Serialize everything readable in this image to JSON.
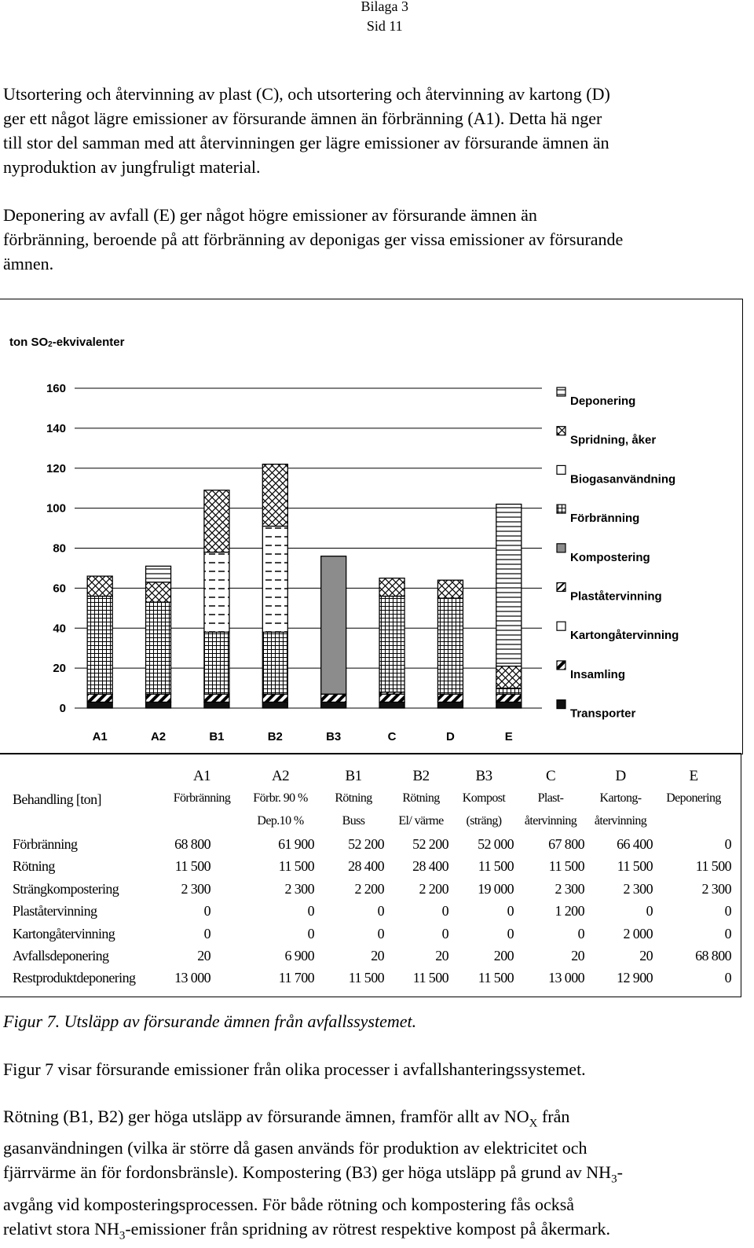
{
  "header": {
    "line1": "Bilaga 3",
    "line2": "Sid 11"
  },
  "paragraphs": {
    "p1": [
      "Utsortering och återvinning av plast (C), och utsortering och återvinning av kartong (D)",
      "ger ett något lägre emissioner av försurande ämnen än förbränning (A1). Detta hä nger",
      "till stor del samman med att återvinningen ger lägre emissioner av försurande ämnen än",
      "nyproduktion av jungfruligt material."
    ],
    "p2": [
      "Deponering av avfall (E) ger något högre emissioner av försurande ämnen än",
      "förbränning, beroende på att förbränning av deponigas ger vissa emissioner av försurande",
      "ämnen."
    ],
    "p3": "Figur 7 visar försurande emissioner från olika processer i avfallshanteringssystemet.",
    "p4_line1_a": "Rötning (B1, B2) ger höga utsläpp av försurande ämnen, framför allt av NO",
    "p4_line1_sub": "X",
    "p4_line1_b": " från",
    "p4_line2": "gasanvändningen (vilka är större då gasen används för produktion av elektricitet och",
    "p4_line3_a": "fjärrvärme än för fordonsbränsle). Kompostering (B3) ger höga utsläpp på grund av NH",
    "p4_line3_sub": "3",
    "p4_line3_b": "-",
    "p4_line4": "avgång vid komposteringsprocessen. För både rötning och kompostering fås också",
    "p4_line5_a": "relativt stora NH",
    "p4_line5_sub": "3",
    "p4_line5_b": "-emissioner från spridning av rötrest respektive kompost på åkermark."
  },
  "chart_data": {
    "type": "bar",
    "stacked": true,
    "ylabel_a": "ton SO",
    "ylabel_sub": "2",
    "ylabel_b": "-ekvivalenter",
    "ylim": [
      0,
      160
    ],
    "yticks": [
      0,
      20,
      40,
      60,
      80,
      100,
      120,
      140,
      160
    ],
    "categories": [
      "A1",
      "A2",
      "B1",
      "B2",
      "B3",
      "C",
      "D",
      "E"
    ],
    "legend_position": "right",
    "series": [
      {
        "name": "Transporter",
        "pattern": "solid-dark",
        "values": [
          3,
          3,
          3,
          3,
          3,
          3,
          3,
          3
        ]
      },
      {
        "name": "Insamling",
        "pattern": "diag",
        "values": [
          4,
          4,
          4,
          4,
          4,
          4,
          4,
          4
        ]
      },
      {
        "name": "Kartongåtervinning",
        "pattern": "white",
        "values": [
          0,
          0,
          0,
          0,
          0,
          0,
          0,
          0
        ]
      },
      {
        "name": "Plaståtervinning",
        "pattern": "diag-heavy",
        "values": [
          0,
          0,
          0,
          0,
          0,
          1,
          0,
          0
        ]
      },
      {
        "name": "Kompostering",
        "pattern": "gray",
        "values": [
          0,
          0,
          0,
          0,
          69,
          0,
          0,
          0
        ]
      },
      {
        "name": "Förbränning",
        "pattern": "grid",
        "values": [
          49,
          46,
          31,
          31,
          0,
          48,
          48,
          3
        ]
      },
      {
        "name": "Biogasanvändning",
        "pattern": "white",
        "values": [
          0,
          0,
          40,
          53,
          0,
          0,
          0,
          0
        ]
      },
      {
        "name": "Spridning, åker",
        "pattern": "crosshatch",
        "values": [
          10,
          10,
          31,
          31,
          0,
          9,
          9,
          11
        ]
      },
      {
        "name": "Deponering",
        "pattern": "hlines",
        "values": [
          0,
          8,
          0,
          0,
          0,
          0,
          0,
          81
        ]
      }
    ]
  },
  "table": {
    "header_label": "Behandling [ton]",
    "columns": [
      {
        "code": "A1",
        "line1": "Förbränning",
        "line2": ""
      },
      {
        "code": "A2",
        "line1": "Förbr. 90 %",
        "line2": "Dep.10 %"
      },
      {
        "code": "B1",
        "line1": "Rötning",
        "line2": "Buss"
      },
      {
        "code": "B2",
        "line1": "Rötning",
        "line2": "El/ värme"
      },
      {
        "code": "B3",
        "line1": "Kompost",
        "line2": "(sträng)"
      },
      {
        "code": "C",
        "line1": "Plast-",
        "line2": "återvinning"
      },
      {
        "code": "D",
        "line1": "Kartong-",
        "line2": "återvinning"
      },
      {
        "code": "E",
        "line1": "Deponering",
        "line2": ""
      }
    ],
    "rows": [
      {
        "label": "Förbränning",
        "values": [
          "68 800",
          "61 900",
          "52 200",
          "52 200",
          "52 000",
          "67 800",
          "66 400",
          "0"
        ]
      },
      {
        "label": "Rötning",
        "values": [
          "11 500",
          "11 500",
          "28 400",
          "28 400",
          "11 500",
          "11 500",
          "11 500",
          "11 500"
        ]
      },
      {
        "label": "Strängkompostering",
        "values": [
          "2 300",
          "2 300",
          "2 200",
          "2 200",
          "19 000",
          "2 300",
          "2 300",
          "2 300"
        ]
      },
      {
        "label": "Plaståtervinning",
        "values": [
          "0",
          "0",
          "0",
          "0",
          "0",
          "1 200",
          "0",
          "0"
        ]
      },
      {
        "label": "Kartongåtervinning",
        "values": [
          "0",
          "0",
          "0",
          "0",
          "0",
          "0",
          "2 000",
          "0"
        ]
      },
      {
        "label": "Avfallsdeponering",
        "values": [
          "20",
          "6 900",
          "20",
          "20",
          "200",
          "20",
          "20",
          "68 800"
        ]
      },
      {
        "label": "Restproduktdeponering",
        "values": [
          "13 000",
          "11 700",
          "11 500",
          "11 500",
          "11 500",
          "13 000",
          "12 900",
          "0"
        ]
      }
    ]
  },
  "caption": "Figur 7. Utsläpp av försurande ämnen från avfallssystemet."
}
